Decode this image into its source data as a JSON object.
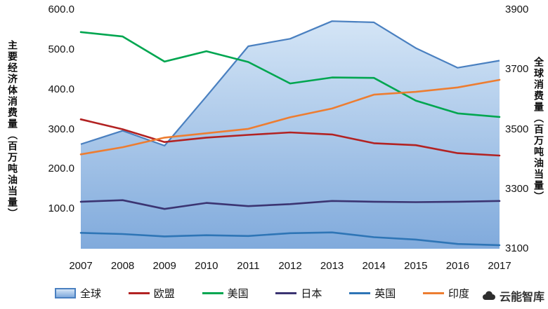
{
  "watermark": {
    "text": "云能智库"
  },
  "chart_data": {
    "type": "area+line combo, dual axis",
    "x": [
      2007,
      2008,
      2009,
      2010,
      2011,
      2012,
      2013,
      2014,
      2015,
      2016,
      2017
    ],
    "x_tick_labels": [
      "2007",
      "2008",
      "2009",
      "2010",
      "2011",
      "2012",
      "2013",
      "2014",
      "2015",
      "2016",
      "2017"
    ],
    "left_axis": {
      "title": "主要经济体消费量（百万吨油当量）",
      "min": 0,
      "max": 600,
      "tick_labels": [
        "600.0",
        "500.0",
        "400.0",
        "300.0",
        "200.0",
        "100.0",
        ""
      ]
    },
    "right_axis": {
      "title": "全球消费量（百万吨油当量）",
      "min": 3100,
      "max": 3900,
      "tick_labels": [
        "3900",
        "3700",
        "3500",
        "3300",
        "3100"
      ]
    },
    "grid": false,
    "legend_position": "bottom",
    "series": [
      {
        "id": "global",
        "name": "全球",
        "type": "area",
        "axis": "right",
        "stroke": "#4a80c0",
        "fill_top": "#d4e5f6",
        "fill_bottom": "#80aadc",
        "values": [
          3450,
          3495,
          3445,
          3610,
          3778,
          3803,
          3862,
          3858,
          3772,
          3706,
          3730
        ]
      },
      {
        "id": "eu",
        "name": "欧盟",
        "type": "line",
        "axis": "left",
        "stroke": "#b22222",
        "values": [
          325,
          300,
          268,
          279,
          286,
          292,
          287,
          265,
          260,
          240,
          234
        ]
      },
      {
        "id": "us",
        "name": "美国",
        "type": "line",
        "axis": "left",
        "stroke": "#00a650",
        "values": [
          544,
          533,
          470,
          496,
          469,
          415,
          430,
          429,
          372,
          340,
          331
        ]
      },
      {
        "id": "japan",
        "name": "日本",
        "type": "line",
        "axis": "left",
        "stroke": "#3b3472",
        "values": [
          118,
          122,
          100,
          115,
          107,
          112,
          120,
          118,
          117,
          118,
          120
        ]
      },
      {
        "id": "uk",
        "name": "英国",
        "type": "line",
        "axis": "left",
        "stroke": "#2e75b6",
        "values": [
          40,
          37,
          31,
          34,
          32,
          39,
          41,
          29,
          23,
          12,
          9
        ]
      },
      {
        "id": "india",
        "name": "印度",
        "type": "line",
        "axis": "left",
        "stroke": "#ed7d31",
        "values": [
          237,
          255,
          279,
          290,
          301,
          330,
          352,
          387,
          394,
          405,
          424
        ]
      }
    ]
  }
}
